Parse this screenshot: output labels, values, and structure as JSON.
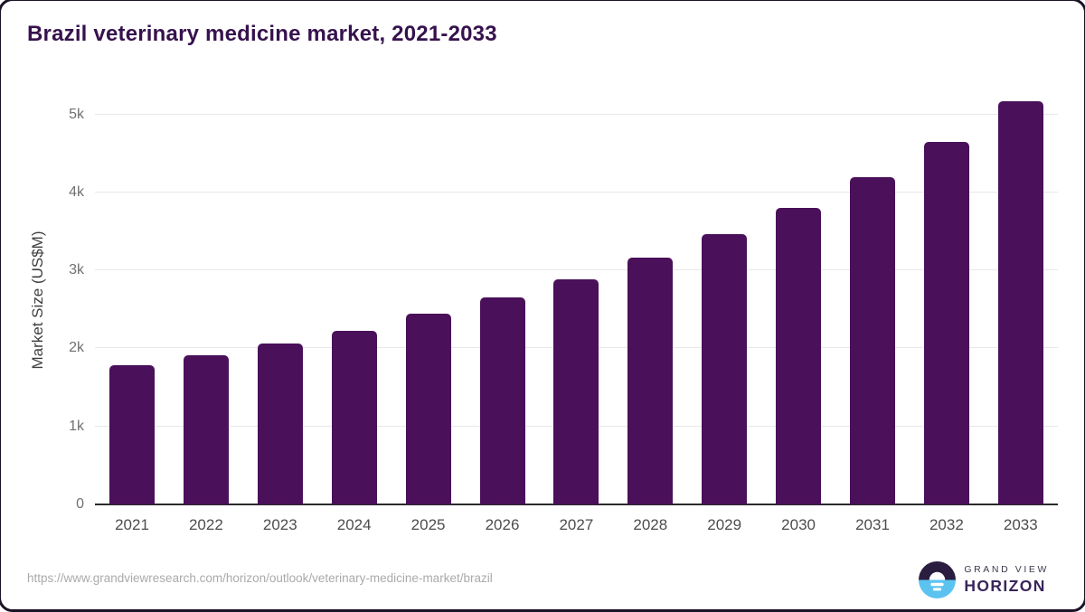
{
  "title": "Brazil veterinary medicine market, 2021-2033",
  "chart_data": {
    "type": "bar",
    "title": "Brazil veterinary medicine market, 2021-2033",
    "categories": [
      "2021",
      "2022",
      "2023",
      "2024",
      "2025",
      "2026",
      "2027",
      "2028",
      "2029",
      "2030",
      "2031",
      "2032",
      "2033"
    ],
    "values": [
      1780,
      1910,
      2060,
      2230,
      2440,
      2650,
      2890,
      3160,
      3460,
      3800,
      4200,
      4650,
      5170
    ],
    "xlabel": "",
    "ylabel": "Market Size (US$M)",
    "ylim": [
      0,
      5270
    ],
    "yticks": [
      0,
      1000,
      2000,
      3000,
      4000,
      5000
    ],
    "ytick_labels": [
      "0",
      "1k",
      "2k",
      "3k",
      "4k",
      "5k"
    ],
    "bar_color": "#4a1059",
    "grid": true,
    "legend_position": "none"
  },
  "footer": {
    "source_url": "https://www.grandviewresearch.com/horizon/outlook/veterinary-medicine-market/brazil",
    "logo": {
      "line1": "GRAND VIEW",
      "line2": "HORIZON"
    }
  },
  "colors": {
    "bar": "#4a1059",
    "title_text": "#36124d",
    "axis_line": "#2b2b2b",
    "gridline": "#e8e8e8",
    "ytick_text": "#707070",
    "xtick_text": "#4d4d4d",
    "source_text": "#aaaaaa",
    "logo_top": "#2a1d40",
    "logo_bottom": "#5cc3f0",
    "logo_horizon_text": "#38255c"
  },
  "icons": {
    "logo_mark": "sun-over-horizon-circle"
  }
}
